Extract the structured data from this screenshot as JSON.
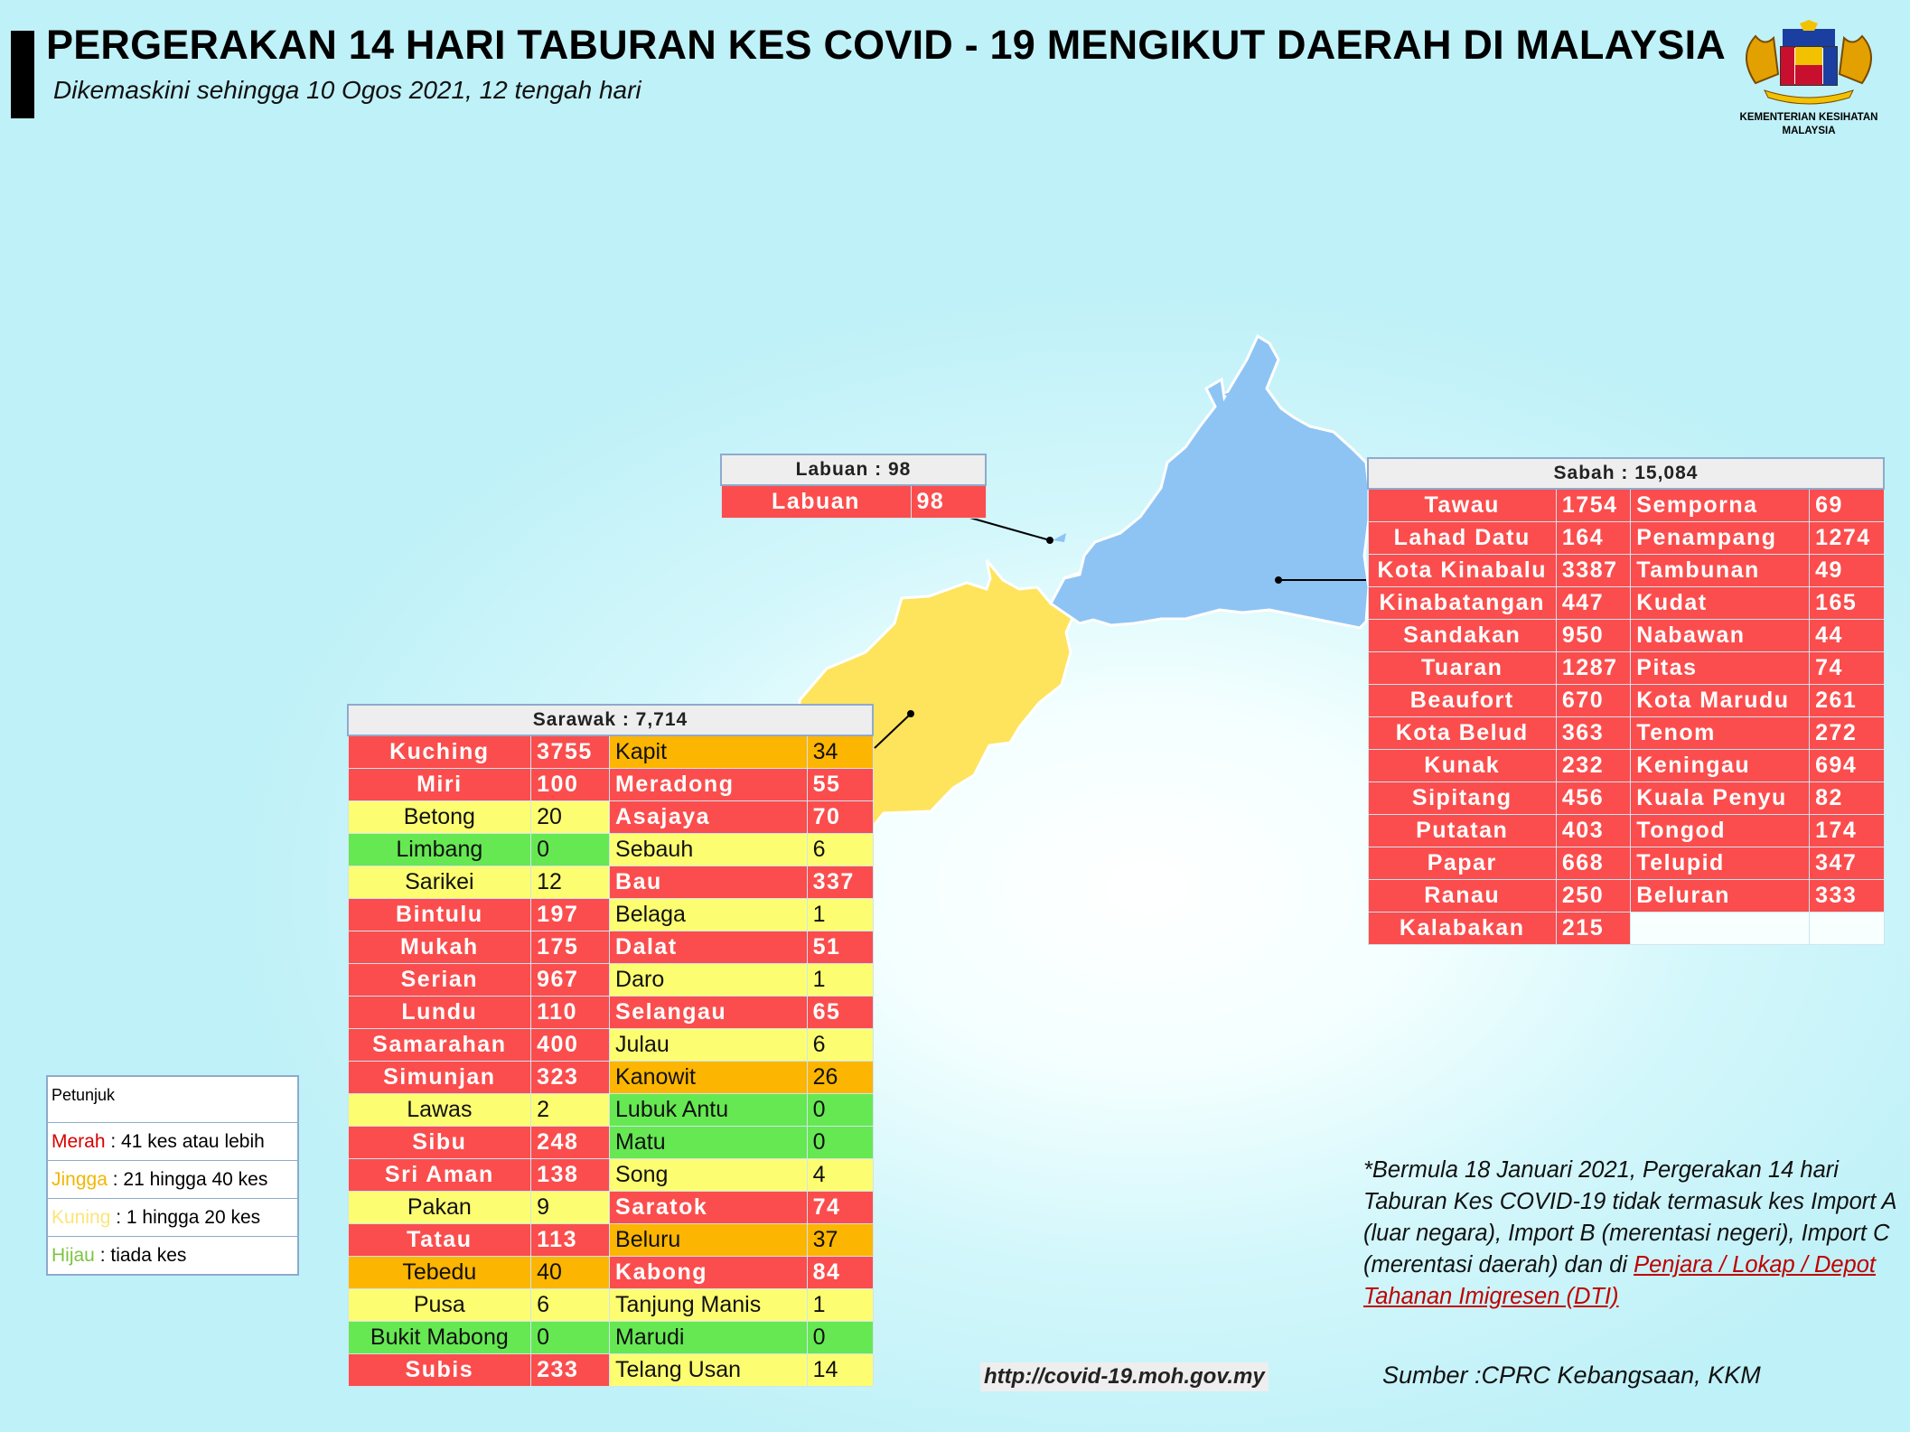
{
  "title": "PERGERAKAN 14 HARI TABURAN KES COVID - 19 MENGIKUT DAERAH DI MALAYSIA",
  "subtitle": "Dikemaskini sehingga 10 Ogos 2021, 12 tengah hari",
  "logo": {
    "caption1": "KEMENTERIAN KESIHATAN",
    "caption2": "MALAYSIA",
    "icon": "malaysia-coat-of-arms"
  },
  "colors": {
    "merah": "#fb4d4d",
    "jingga": "#fcb500",
    "kuning": "#fdfd71",
    "hijau": "#66e852",
    "sabah_map": "#8ec4f4",
    "sarawak_map": "#fde45c"
  },
  "labuan": {
    "header": "Labuan : 98",
    "rows": [
      {
        "name": "Labuan",
        "value": "98",
        "color": "red"
      }
    ]
  },
  "sabah": {
    "header": "Sabah : 15,084",
    "rows": [
      {
        "c1": {
          "name": "Tawau",
          "value": "1754",
          "color": "red"
        },
        "c2": {
          "name": "Semporna",
          "value": "69",
          "color": "red"
        }
      },
      {
        "c1": {
          "name": "Lahad Datu",
          "value": "164",
          "color": "red"
        },
        "c2": {
          "name": "Penampang",
          "value": "1274",
          "color": "red"
        }
      },
      {
        "c1": {
          "name": "Kota Kinabalu",
          "value": "3387",
          "color": "red"
        },
        "c2": {
          "name": "Tambunan",
          "value": "49",
          "color": "red"
        }
      },
      {
        "c1": {
          "name": "Kinabatangan",
          "value": "447",
          "color": "red"
        },
        "c2": {
          "name": "Kudat",
          "value": "165",
          "color": "red"
        }
      },
      {
        "c1": {
          "name": "Sandakan",
          "value": "950",
          "color": "red"
        },
        "c2": {
          "name": "Nabawan",
          "value": "44",
          "color": "red"
        }
      },
      {
        "c1": {
          "name": "Tuaran",
          "value": "1287",
          "color": "red"
        },
        "c2": {
          "name": "Pitas",
          "value": "74",
          "color": "red"
        }
      },
      {
        "c1": {
          "name": "Beaufort",
          "value": "670",
          "color": "red"
        },
        "c2": {
          "name": "Kota Marudu",
          "value": "261",
          "color": "red"
        }
      },
      {
        "c1": {
          "name": "Kota Belud",
          "value": "363",
          "color": "red"
        },
        "c2": {
          "name": "Tenom",
          "value": "272",
          "color": "red"
        }
      },
      {
        "c1": {
          "name": "Kunak",
          "value": "232",
          "color": "red"
        },
        "c2": {
          "name": "Keningau",
          "value": "694",
          "color": "red"
        }
      },
      {
        "c1": {
          "name": "Sipitang",
          "value": "456",
          "color": "red"
        },
        "c2": {
          "name": "Kuala Penyu",
          "value": "82",
          "color": "red"
        }
      },
      {
        "c1": {
          "name": "Putatan",
          "value": "403",
          "color": "red"
        },
        "c2": {
          "name": "Tongod",
          "value": "174",
          "color": "red"
        }
      },
      {
        "c1": {
          "name": "Papar",
          "value": "668",
          "color": "red"
        },
        "c2": {
          "name": "Telupid",
          "value": "347",
          "color": "red"
        }
      },
      {
        "c1": {
          "name": "Ranau",
          "value": "250",
          "color": "red"
        },
        "c2": {
          "name": "Beluran",
          "value": "333",
          "color": "red"
        }
      },
      {
        "c1": {
          "name": "Kalabakan",
          "value": "215",
          "color": "red"
        },
        "c2": null
      }
    ]
  },
  "sarawak": {
    "header": "Sarawak : 7,714",
    "rows": [
      {
        "c1": {
          "name": "Kuching",
          "value": "3755",
          "color": "red"
        },
        "c2": {
          "name": "Kapit",
          "value": "34",
          "color": "orange"
        }
      },
      {
        "c1": {
          "name": "Miri",
          "value": "100",
          "color": "red"
        },
        "c2": {
          "name": "Meradong",
          "value": "55",
          "color": "red"
        }
      },
      {
        "c1": {
          "name": "Betong",
          "value": "20",
          "color": "yellow"
        },
        "c2": {
          "name": "Asajaya",
          "value": "70",
          "color": "red"
        }
      },
      {
        "c1": {
          "name": "Limbang",
          "value": "0",
          "color": "green"
        },
        "c2": {
          "name": "Sebauh",
          "value": "6",
          "color": "yellow"
        }
      },
      {
        "c1": {
          "name": "Sarikei",
          "value": "12",
          "color": "yellow"
        },
        "c2": {
          "name": "Bau",
          "value": "337",
          "color": "red"
        }
      },
      {
        "c1": {
          "name": "Bintulu",
          "value": "197",
          "color": "red"
        },
        "c2": {
          "name": "Belaga",
          "value": "1",
          "color": "yellow"
        }
      },
      {
        "c1": {
          "name": "Mukah",
          "value": "175",
          "color": "red"
        },
        "c2": {
          "name": "Dalat",
          "value": "51",
          "color": "red"
        }
      },
      {
        "c1": {
          "name": "Serian",
          "value": "967",
          "color": "red"
        },
        "c2": {
          "name": "Daro",
          "value": "1",
          "color": "yellow"
        }
      },
      {
        "c1": {
          "name": "Lundu",
          "value": "110",
          "color": "red"
        },
        "c2": {
          "name": "Selangau",
          "value": "65",
          "color": "red"
        }
      },
      {
        "c1": {
          "name": "Samarahan",
          "value": "400",
          "color": "red"
        },
        "c2": {
          "name": "Julau",
          "value": "6",
          "color": "yellow"
        }
      },
      {
        "c1": {
          "name": "Simunjan",
          "value": "323",
          "color": "red"
        },
        "c2": {
          "name": "Kanowit",
          "value": "26",
          "color": "orange"
        }
      },
      {
        "c1": {
          "name": "Lawas",
          "value": "2",
          "color": "yellow"
        },
        "c2": {
          "name": "Lubuk Antu",
          "value": "0",
          "color": "green"
        }
      },
      {
        "c1": {
          "name": "Sibu",
          "value": "248",
          "color": "red"
        },
        "c2": {
          "name": "Matu",
          "value": "0",
          "color": "green"
        }
      },
      {
        "c1": {
          "name": "Sri Aman",
          "value": "138",
          "color": "red"
        },
        "c2": {
          "name": "Song",
          "value": "4",
          "color": "yellow"
        }
      },
      {
        "c1": {
          "name": "Pakan",
          "value": "9",
          "color": "yellow"
        },
        "c2": {
          "name": "Saratok",
          "value": "74",
          "color": "red"
        }
      },
      {
        "c1": {
          "name": "Tatau",
          "value": "113",
          "color": "red"
        },
        "c2": {
          "name": "Beluru",
          "value": "37",
          "color": "orange"
        }
      },
      {
        "c1": {
          "name": "Tebedu",
          "value": "40",
          "color": "orange"
        },
        "c2": {
          "name": "Kabong",
          "value": "84",
          "color": "red"
        }
      },
      {
        "c1": {
          "name": "Pusa",
          "value": "6",
          "color": "yellow"
        },
        "c2": {
          "name": "Tanjung Manis",
          "value": "1",
          "color": "yellow"
        }
      },
      {
        "c1": {
          "name": "Bukit Mabong",
          "value": "0",
          "color": "green"
        },
        "c2": {
          "name": "Marudi",
          "value": "0",
          "color": "green"
        }
      },
      {
        "c1": {
          "name": "Subis",
          "value": "233",
          "color": "red"
        },
        "c2": {
          "name": "Telang Usan",
          "value": "14",
          "color": "yellow"
        }
      }
    ]
  },
  "legend": {
    "title": "Petunjuk",
    "items": [
      {
        "term": "Merah",
        "desc": " : 41 kes atau lebih",
        "color": "#d90000"
      },
      {
        "term": "Jingga",
        "desc": " : 21 hingga 40 kes",
        "color": "#f2b600"
      },
      {
        "term": "Kuning",
        "desc": " : 1 hingga 20 kes",
        "color": "#fbe57a"
      },
      {
        "term": "Hijau",
        "desc": " : tiada kes",
        "color": "#7cc443"
      }
    ]
  },
  "note": {
    "text": "*Bermula 18 Januari 2021, Pergerakan 14 hari Taburan Kes COVID-19 tidak termasuk kes Import A (luar negara), Import B (merentasi negeri), Import C (merentasi daerah) dan di ",
    "red_text": "Penjara / Lokap / Depot Tahanan Imigresen (DTI)"
  },
  "source": "Sumber :CPRC Kebangsaan,  KKM",
  "url": "http://covid-19.moh.gov.my"
}
